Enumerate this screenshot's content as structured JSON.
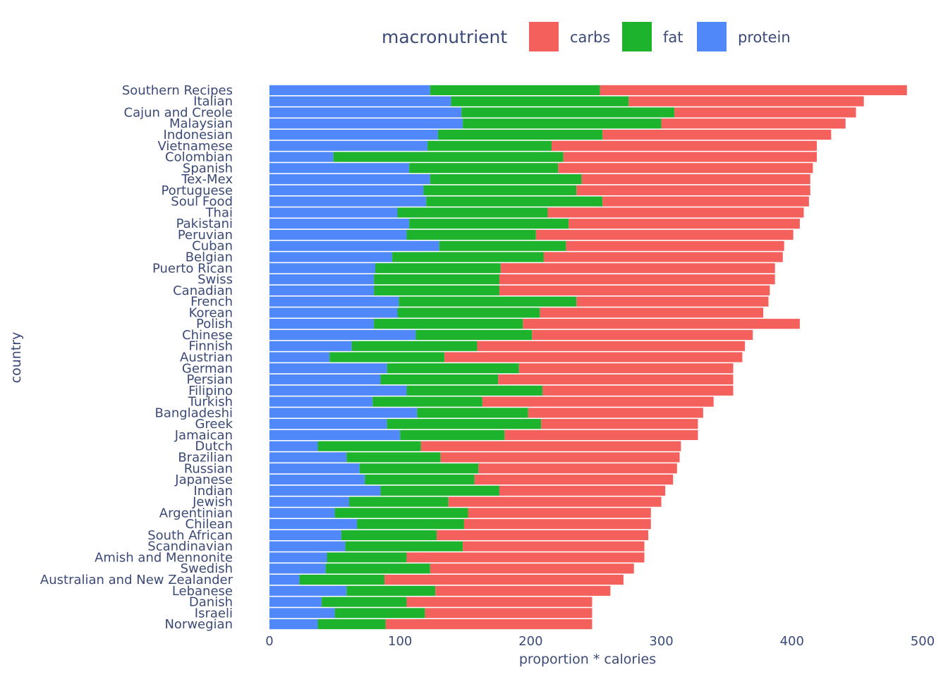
{
  "chart_data": {
    "type": "bar",
    "orientation": "horizontal",
    "barmode": "stack",
    "xlabel": "proportion * calories",
    "ylabel": "country",
    "xlim": [
      0,
      500
    ],
    "xticks": [
      0,
      100,
      200,
      300,
      400,
      500
    ],
    "grid": false,
    "legend": {
      "title": "macronutrient",
      "placement": "top"
    },
    "colors": {
      "carbs": "#f4605c",
      "fat": "#1db32d",
      "protein": "#5087f9"
    },
    "categories": [
      "Southern Recipes",
      "Italian",
      "Cajun and Creole",
      "Malaysian",
      "Indonesian",
      "Vietnamese",
      "Colombian",
      "Spanish",
      "Tex-Mex",
      "Portuguese",
      "Soul Food",
      "Thai",
      "Pakistani",
      "Peruvian",
      "Cuban",
      "Belgian",
      "Puerto Rican",
      "Swiss",
      "Canadian",
      "French",
      "Korean",
      "Polish",
      "Chinese",
      "Finnish",
      "Austrian",
      "German",
      "Persian",
      "Filipino",
      "Turkish",
      "Bangladeshi",
      "Greek",
      "Jamaican",
      "Dutch",
      "Brazilian",
      "Russian",
      "Japanese",
      "Indian",
      "Jewish",
      "Argentinian",
      "Chilean",
      "South African",
      "Scandinavian",
      "Amish and Mennonite",
      "Swedish",
      "Australian and New Zealander",
      "Lebanese",
      "Danish",
      "Israeli",
      "Norwegian"
    ],
    "series": [
      {
        "name": "protein",
        "values": [
          123,
          139,
          147,
          148,
          129,
          121,
          49,
          107,
          123,
          118,
          120,
          98,
          107,
          105,
          130,
          94,
          81,
          80,
          80,
          99,
          98,
          80,
          112,
          63,
          46,
          90,
          85,
          105,
          79,
          113,
          90,
          100,
          37,
          59,
          69,
          73,
          85,
          61,
          50,
          67,
          55,
          58,
          44,
          43,
          23,
          59,
          40,
          50,
          37
        ]
      },
      {
        "name": "fat",
        "values": [
          130,
          136,
          163,
          152,
          126,
          95,
          176,
          114,
          116,
          117,
          135,
          115,
          122,
          99,
          97,
          116,
          96,
          96,
          96,
          136,
          109,
          114,
          89,
          96,
          88,
          101,
          90,
          104,
          84,
          85,
          118,
          80,
          79,
          72,
          91,
          84,
          91,
          76,
          102,
          82,
          73,
          90,
          61,
          80,
          65,
          68,
          65,
          69,
          52
        ]
      },
      {
        "name": "carbs",
        "values": [
          235,
          180,
          139,
          141,
          175,
          203,
          194,
          195,
          175,
          179,
          158,
          196,
          177,
          197,
          167,
          183,
          210,
          211,
          207,
          147,
          171,
          212,
          169,
          205,
          228,
          164,
          180,
          146,
          177,
          134,
          120,
          148,
          199,
          183,
          152,
          152,
          127,
          163,
          140,
          143,
          162,
          139,
          182,
          156,
          183,
          134,
          142,
          128,
          158
        ]
      }
    ]
  }
}
